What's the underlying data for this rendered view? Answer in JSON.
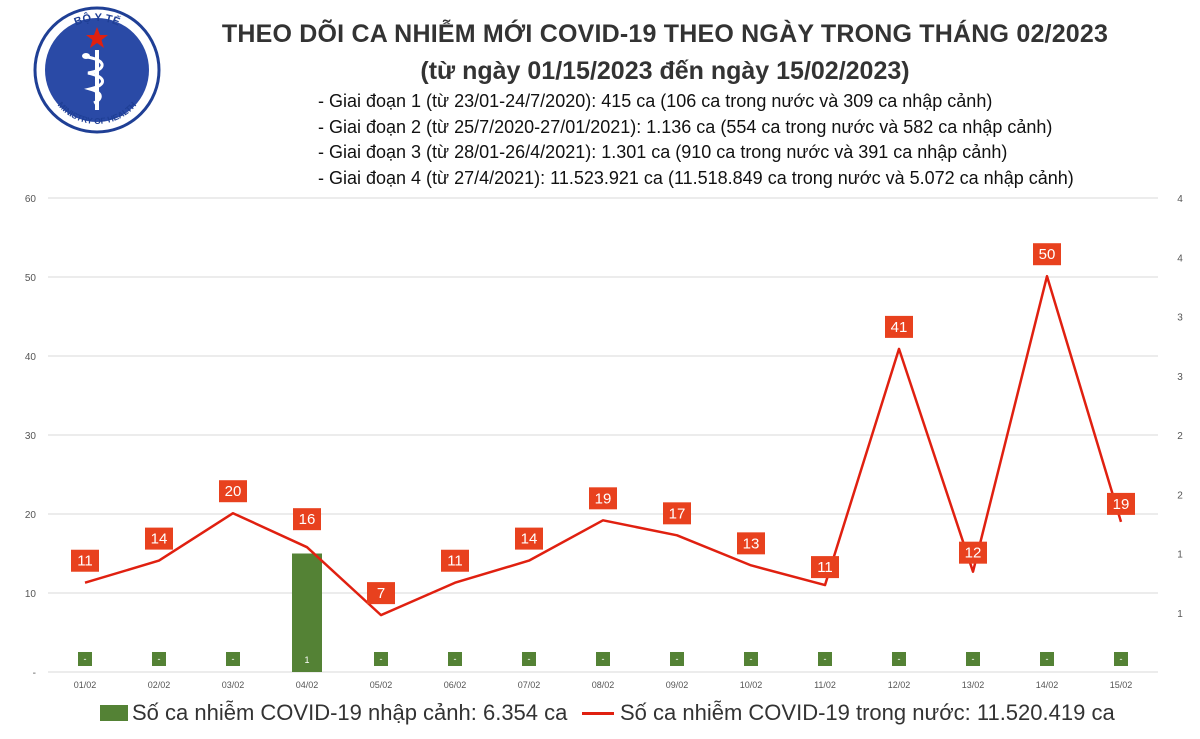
{
  "header": {
    "logo_text_top": "BỘ Y TẾ",
    "logo_text_bottom": "MINISTRY OF HEALTH",
    "title": "THEO DÕI CA NHIỄM MỚI COVID-19 THEO NGÀY TRONG THÁNG 02/2023",
    "subtitle": "(từ ngày 01/15/2023 đến ngày 15/02/2023)",
    "phases": [
      "- Giai đoạn 1 (từ 23/01-24/7/2020): 415 ca (106 ca trong nước và 309 ca nhập cảnh)",
      "- Giai đoạn 2 (từ 25/7/2020-27/01/2021): 1.136 ca (554 ca trong nước và 582 ca nhập cảnh)",
      "- Giai đoạn 3 (từ 28/01-26/4/2021): 1.301 ca (910 ca trong nước và 391 ca nhập cảnh)",
      "- Giai đoạn 4 (từ 27/4/2021): 11.523.921 ca (11.518.849 ca trong nước và 5.072 ca nhập cảnh)"
    ]
  },
  "colors": {
    "line": "#e02010",
    "label_box": "#e8411e",
    "bar": "#548235",
    "grid": "#d9d9d9"
  },
  "chart_data": {
    "type": "bar+line",
    "categories": [
      "01/02",
      "02/02",
      "03/02",
      "04/02",
      "05/02",
      "06/02",
      "07/02",
      "08/02",
      "09/02",
      "10/02",
      "11/02",
      "12/02",
      "13/02",
      "14/02",
      "15/02"
    ],
    "series": [
      {
        "name": "Số ca nhiễm COVID-19 trong nước: 11.520.419 ca",
        "type": "line",
        "axis": "left",
        "values": [
          11,
          14,
          20,
          16,
          7,
          11,
          14,
          19,
          17,
          13,
          11,
          41,
          12,
          50,
          19
        ],
        "plotted": [
          11.3,
          14.1,
          20.1,
          15.8,
          7.2,
          11.3,
          14.1,
          19.2,
          17.3,
          13.5,
          11.0,
          40.9,
          12.7,
          50.1,
          19.0
        ]
      },
      {
        "name": "Số ca nhiễm COVID-19 nhập cảnh: 6.354 ca",
        "type": "bar",
        "axis": "right",
        "values": [
          0,
          0,
          0,
          1,
          0,
          0,
          0,
          0,
          0,
          0,
          0,
          0,
          0,
          0,
          0
        ],
        "labels": [
          "-",
          "-",
          "-",
          "1",
          "-",
          "-",
          "-",
          "-",
          "-",
          "-",
          "-",
          "-",
          "-",
          "-",
          "-"
        ]
      }
    ],
    "ylim_left": [
      0,
      60
    ],
    "yticks_left": [
      "-",
      "10",
      "20",
      "30",
      "40",
      "50",
      "60"
    ],
    "ylim_right": [
      0,
      4
    ],
    "yticks_right": [
      "",
      "1",
      "1",
      "2",
      "2",
      "3",
      "3",
      "4",
      "4"
    ],
    "grid": true,
    "legend": {
      "position": "bottom",
      "bar_label": "Số ca nhiễm COVID-19 nhập cảnh: 6.354 ca",
      "line_label": "Số ca nhiễm COVID-19 trong nước: 11.520.419 ca"
    }
  }
}
